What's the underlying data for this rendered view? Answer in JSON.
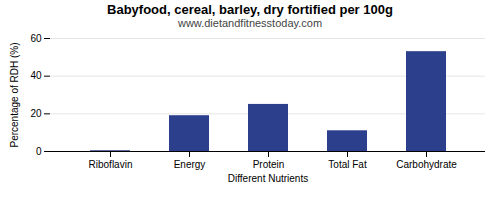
{
  "chart_data": {
    "type": "bar",
    "title": "Babyfood, cereal, barley, dry fortified per 100g",
    "subtitle": "www.dietandfitnesstoday.com",
    "xlabel": "Different Nutrients",
    "ylabel": "Percentage of RDH (%)",
    "categories": [
      "Riboflavin",
      "Energy",
      "Protein",
      "Total Fat",
      "Carbohydrate"
    ],
    "values": [
      0.4,
      19.0,
      25.0,
      11.0,
      53.0
    ],
    "color": "#2b3f8c",
    "ylim": [
      0,
      60
    ],
    "yticks": [
      0,
      20,
      40,
      60
    ],
    "grid": true
  }
}
